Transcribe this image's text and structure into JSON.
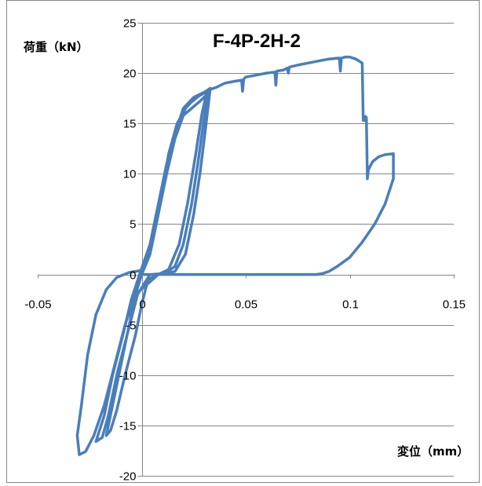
{
  "chart_data": {
    "type": "line",
    "title": "F-4P-2H-2",
    "xlabel": "変位（mm）",
    "ylabel": "荷重（kN）",
    "xlim": [
      -0.05,
      0.15
    ],
    "ylim": [
      -20,
      25
    ],
    "xticks": [
      -0.05,
      0,
      0.05,
      0.1,
      0.15
    ],
    "yticks": [
      -20,
      -15,
      -10,
      -5,
      0,
      5,
      10,
      15,
      20,
      25
    ],
    "xtick_labels": [
      "-0.05",
      "0",
      "0.05",
      "0.1",
      "0.15"
    ],
    "ytick_labels": [
      "-20",
      "-15",
      "-10",
      "-5",
      "0",
      "5",
      "10",
      "15",
      "20",
      "25"
    ],
    "grid": "horizontal",
    "legend": "none",
    "colors": {
      "series": "#4a7ebb",
      "axis": "#868686"
    },
    "series": [
      {
        "values": [
          [
            0,
            0
          ],
          [
            0.004,
            2
          ],
          [
            0.008,
            6
          ],
          [
            0.012,
            10
          ],
          [
            0.016,
            13.5
          ],
          [
            0.02,
            15.8
          ],
          [
            0.024,
            16.5
          ],
          [
            0.028,
            17.2
          ],
          [
            0.031,
            17.8
          ],
          [
            0.029,
            16
          ],
          [
            0.026,
            12
          ],
          [
            0.022,
            7
          ],
          [
            0.018,
            3
          ],
          [
            0.013,
            0.5
          ],
          [
            0.008,
            0
          ],
          [
            0.003,
            -0.5
          ],
          [
            0,
            -3
          ],
          [
            -0.003,
            -6
          ],
          [
            -0.008,
            -10
          ],
          [
            -0.012,
            -13.5
          ],
          [
            -0.015,
            -15.5
          ],
          [
            -0.017,
            -16
          ],
          [
            -0.014,
            -13
          ],
          [
            -0.01,
            -9
          ],
          [
            -0.006,
            -5
          ],
          [
            -0.003,
            -2
          ],
          [
            0,
            0
          ],
          [
            0.005,
            3
          ],
          [
            0.009,
            7
          ],
          [
            0.013,
            11
          ],
          [
            0.017,
            14.5
          ],
          [
            0.021,
            16.5
          ],
          [
            0.026,
            17.6
          ],
          [
            0.032,
            18.2
          ],
          [
            0.03,
            15.5
          ],
          [
            0.027,
            11
          ],
          [
            0.024,
            7
          ],
          [
            0.02,
            3
          ],
          [
            0.016,
            0.8
          ],
          [
            0.011,
            0.1
          ],
          [
            0.004,
            0
          ],
          [
            -0.002,
            -2
          ],
          [
            -0.007,
            -6
          ],
          [
            -0.012,
            -10
          ],
          [
            -0.016,
            -14
          ],
          [
            -0.019,
            -16.2
          ],
          [
            -0.022,
            -16.6
          ],
          [
            -0.018,
            -14
          ],
          [
            -0.014,
            -10
          ],
          [
            -0.009,
            -6
          ],
          [
            -0.005,
            -2.5
          ],
          [
            -0.001,
            0
          ],
          [
            0.004,
            3
          ],
          [
            0.009,
            7.5
          ],
          [
            0.013,
            12
          ],
          [
            0.017,
            15
          ],
          [
            0.022,
            16.8
          ],
          [
            0.028,
            17.8
          ],
          [
            0.033,
            18.5
          ],
          [
            0.031,
            15
          ],
          [
            0.028,
            10
          ],
          [
            0.025,
            6
          ],
          [
            0.021,
            2
          ],
          [
            0.016,
            0.3
          ],
          [
            0.008,
            0
          ],
          [
            -0.003,
            -2
          ],
          [
            -0.008,
            -5
          ],
          [
            -0.013,
            -9
          ],
          [
            -0.018,
            -13
          ],
          [
            -0.023,
            -16
          ],
          [
            -0.027,
            -17.6
          ],
          [
            -0.03,
            -17.9
          ],
          [
            -0.031,
            -16
          ],
          [
            -0.029,
            -13
          ],
          [
            -0.026,
            -8
          ],
          [
            -0.022,
            -4
          ],
          [
            -0.017,
            -1.5
          ],
          [
            -0.012,
            -0.3
          ],
          [
            -0.006,
            0.2
          ],
          [
            0,
            0.4
          ],
          [
            0.004,
            3
          ],
          [
            0.008,
            7
          ],
          [
            0.012,
            11
          ],
          [
            0.016,
            14
          ],
          [
            0.02,
            16.5
          ],
          [
            0.025,
            17.6
          ],
          [
            0.032,
            18.3
          ],
          [
            0.036,
            18.6
          ],
          [
            0.04,
            19
          ],
          [
            0.045,
            19.2
          ],
          [
            0.048,
            19.3
          ],
          [
            0.0485,
            18.2
          ],
          [
            0.049,
            19.4
          ],
          [
            0.05,
            19.6
          ],
          [
            0.055,
            19.8
          ],
          [
            0.06,
            20
          ],
          [
            0.064,
            20.1
          ],
          [
            0.0645,
            18.8
          ],
          [
            0.065,
            20.2
          ],
          [
            0.068,
            20.3
          ],
          [
            0.07,
            20.5
          ],
          [
            0.0705,
            20
          ],
          [
            0.071,
            20.6
          ],
          [
            0.075,
            20.8
          ],
          [
            0.08,
            21
          ],
          [
            0.085,
            21.2
          ],
          [
            0.09,
            21.4
          ],
          [
            0.095,
            21.5
          ],
          [
            0.0955,
            20.2
          ],
          [
            0.096,
            21.5
          ],
          [
            0.098,
            21.6
          ],
          [
            0.1,
            21.6
          ],
          [
            0.103,
            21.4
          ],
          [
            0.106,
            21
          ],
          [
            0.1065,
            15.3
          ],
          [
            0.107,
            15.3
          ],
          [
            0.1075,
            15.7
          ],
          [
            0.108,
            15.6
          ],
          [
            0.1085,
            9.5
          ],
          [
            0.109,
            10.4
          ],
          [
            0.111,
            11.2
          ],
          [
            0.114,
            11.7
          ],
          [
            0.117,
            11.9
          ],
          [
            0.121,
            12
          ],
          [
            0.121,
            9.5
          ],
          [
            0.117,
            7
          ],
          [
            0.112,
            5
          ],
          [
            0.106,
            3.2
          ],
          [
            0.1,
            1.7
          ],
          [
            0.094,
            0.8
          ],
          [
            0.09,
            0.3
          ],
          [
            0.087,
            0.1
          ],
          [
            0.084,
            0
          ],
          [
            0.06,
            0
          ],
          [
            0.04,
            0
          ],
          [
            0.02,
            0
          ],
          [
            0.005,
            0
          ],
          [
            0,
            0
          ]
        ]
      }
    ]
  }
}
